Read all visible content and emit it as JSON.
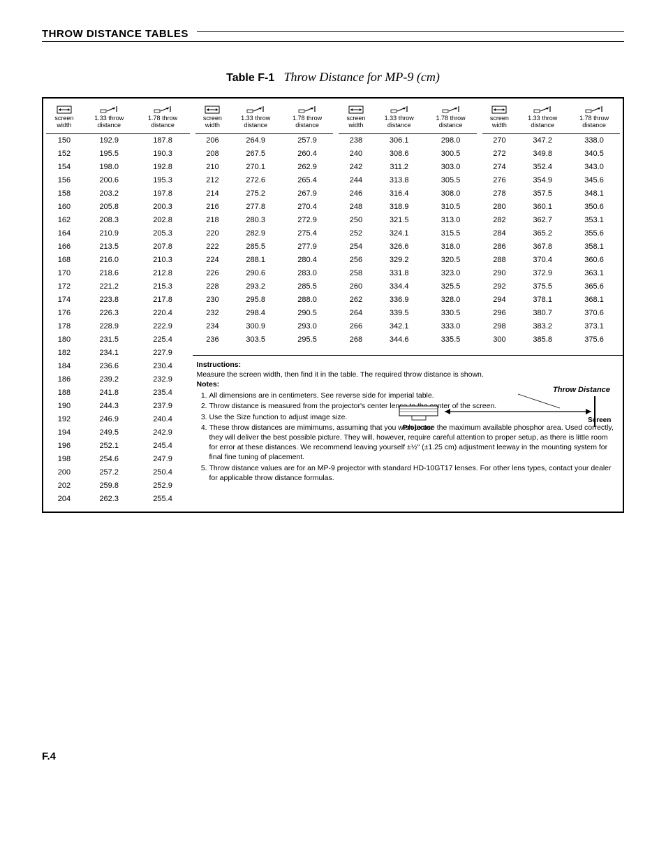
{
  "header": {
    "title": "THROW DISTANCE TABLES"
  },
  "table_title": {
    "num": "Table F-1",
    "text": "Throw Distance for MP-9 (cm)"
  },
  "columns": {
    "h1": "screen width",
    "h2": "1.33 throw distance",
    "h3": "1.78 throw distance"
  },
  "sections": [
    {
      "rows": [
        [
          "150",
          "192.9",
          "187.8"
        ],
        [
          "152",
          "195.5",
          "190.3"
        ],
        [
          "154",
          "198.0",
          "192.8"
        ],
        [
          "156",
          "200.6",
          "195.3"
        ],
        [
          "158",
          "203.2",
          "197.8"
        ],
        [
          "160",
          "205.8",
          "200.3"
        ],
        [
          "162",
          "208.3",
          "202.8"
        ],
        [
          "164",
          "210.9",
          "205.3"
        ],
        [
          "166",
          "213.5",
          "207.8"
        ],
        [
          "168",
          "216.0",
          "210.3"
        ],
        [
          "170",
          "218.6",
          "212.8"
        ],
        [
          "172",
          "221.2",
          "215.3"
        ],
        [
          "174",
          "223.8",
          "217.8"
        ],
        [
          "176",
          "226.3",
          "220.4"
        ],
        [
          "178",
          "228.9",
          "222.9"
        ],
        [
          "180",
          "231.5",
          "225.4"
        ],
        [
          "182",
          "234.1",
          "227.9"
        ],
        [
          "184",
          "236.6",
          "230.4"
        ],
        [
          "186",
          "239.2",
          "232.9"
        ],
        [
          "188",
          "241.8",
          "235.4"
        ],
        [
          "190",
          "244.3",
          "237.9"
        ],
        [
          "192",
          "246.9",
          "240.4"
        ],
        [
          "194",
          "249.5",
          "242.9"
        ],
        [
          "196",
          "252.1",
          "245.4"
        ],
        [
          "198",
          "254.6",
          "247.9"
        ],
        [
          "200",
          "257.2",
          "250.4"
        ],
        [
          "202",
          "259.8",
          "252.9"
        ],
        [
          "204",
          "262.3",
          "255.4"
        ]
      ]
    },
    {
      "rows": [
        [
          "206",
          "264.9",
          "257.9"
        ],
        [
          "208",
          "267.5",
          "260.4"
        ],
        [
          "210",
          "270.1",
          "262.9"
        ],
        [
          "212",
          "272.6",
          "265.4"
        ],
        [
          "214",
          "275.2",
          "267.9"
        ],
        [
          "216",
          "277.8",
          "270.4"
        ],
        [
          "218",
          "280.3",
          "272.9"
        ],
        [
          "220",
          "282.9",
          "275.4"
        ],
        [
          "222",
          "285.5",
          "277.9"
        ],
        [
          "224",
          "288.1",
          "280.4"
        ],
        [
          "226",
          "290.6",
          "283.0"
        ],
        [
          "228",
          "293.2",
          "285.5"
        ],
        [
          "230",
          "295.8",
          "288.0"
        ],
        [
          "232",
          "298.4",
          "290.5"
        ],
        [
          "234",
          "300.9",
          "293.0"
        ],
        [
          "236",
          "303.5",
          "295.5"
        ]
      ]
    },
    {
      "rows": [
        [
          "238",
          "306.1",
          "298.0"
        ],
        [
          "240",
          "308.6",
          "300.5"
        ],
        [
          "242",
          "311.2",
          "303.0"
        ],
        [
          "244",
          "313.8",
          "305.5"
        ],
        [
          "246",
          "316.4",
          "308.0"
        ],
        [
          "248",
          "318.9",
          "310.5"
        ],
        [
          "250",
          "321.5",
          "313.0"
        ],
        [
          "252",
          "324.1",
          "315.5"
        ],
        [
          "254",
          "326.6",
          "318.0"
        ],
        [
          "256",
          "329.2",
          "320.5"
        ],
        [
          "258",
          "331.8",
          "323.0"
        ],
        [
          "260",
          "334.4",
          "325.5"
        ],
        [
          "262",
          "336.9",
          "328.0"
        ],
        [
          "264",
          "339.5",
          "330.5"
        ],
        [
          "266",
          "342.1",
          "333.0"
        ],
        [
          "268",
          "344.6",
          "335.5"
        ]
      ]
    },
    {
      "rows": [
        [
          "270",
          "347.2",
          "338.0"
        ],
        [
          "272",
          "349.8",
          "340.5"
        ],
        [
          "274",
          "352.4",
          "343.0"
        ],
        [
          "276",
          "354.9",
          "345.6"
        ],
        [
          "278",
          "357.5",
          "348.1"
        ],
        [
          "280",
          "360.1",
          "350.6"
        ],
        [
          "282",
          "362.7",
          "353.1"
        ],
        [
          "284",
          "365.2",
          "355.6"
        ],
        [
          "286",
          "367.8",
          "358.1"
        ],
        [
          "288",
          "370.4",
          "360.6"
        ],
        [
          "290",
          "372.9",
          "363.1"
        ],
        [
          "292",
          "375.5",
          "365.6"
        ],
        [
          "294",
          "378.1",
          "368.1"
        ],
        [
          "296",
          "380.7",
          "370.6"
        ],
        [
          "298",
          "383.2",
          "373.1"
        ],
        [
          "300",
          "385.8",
          "375.6"
        ]
      ]
    }
  ],
  "notes": {
    "instr_label": "Instructions:",
    "instr_text": "Measure the screen width, then find it in the table. The required throw distance is shown.",
    "notes_label": "Notes:",
    "items": [
      "All dimensions are in centimeters. See reverse side for imperial table.",
      "Throw distance is measured from the projector's center lense to the center of the screen.",
      "Use the Size function to adjust image size.",
      "These throw distances are mimimums, assuming that you wish to use the maximum available phosphor area. Used correctly, they will deliver the best possible picture. They will, however, require careful attention to proper setup, as there is little room for error at these distances. We recommend leaving yourself ±½\" (±1.25 cm) adjustment leeway in the mounting system for final fine tuning of placement.",
      "Throw distance values are for an MP-9 projector with standard HD-10GT17 lenses. For other lens types, contact your dealer for applicable throw distance formulas."
    ],
    "diagram": {
      "throw_label": "Throw Distance",
      "projector": "Projector",
      "screen": "Screen"
    }
  },
  "footer": {
    "page": "F.4"
  }
}
